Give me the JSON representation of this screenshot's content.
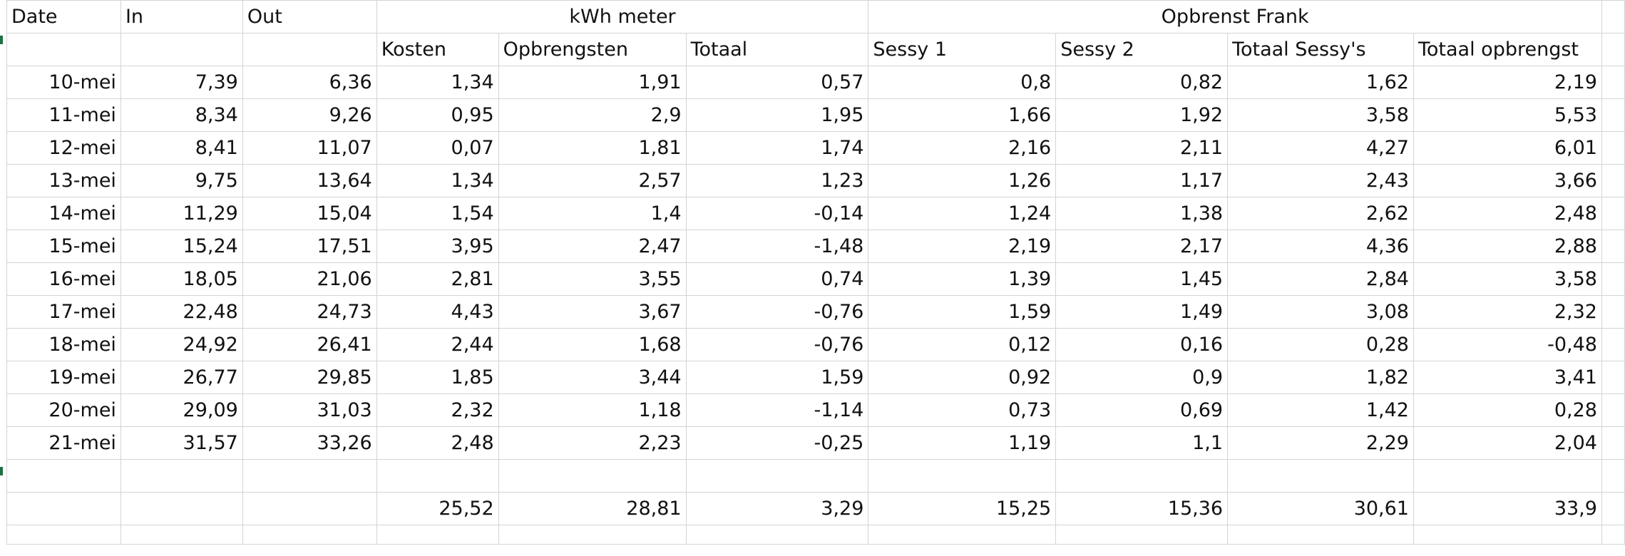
{
  "header": {
    "row1": {
      "date": "Date",
      "in": "In",
      "out": "Out",
      "kwh_meter": "kWh meter",
      "opbrenst_frank": "Opbrenst Frank"
    },
    "row2": [
      "Kosten",
      "Opbrengsten",
      "Totaal",
      "Sessy 1",
      "Sessy 2",
      "Totaal Sessy's",
      "Totaal opbrengst"
    ]
  },
  "rows": [
    [
      "10-mei",
      "7,39",
      "6,36",
      "1,34",
      "1,91",
      "0,57",
      "0,8",
      "0,82",
      "1,62",
      "2,19"
    ],
    [
      "11-mei",
      "8,34",
      "9,26",
      "0,95",
      "2,9",
      "1,95",
      "1,66",
      "1,92",
      "3,58",
      "5,53"
    ],
    [
      "12-mei",
      "8,41",
      "11,07",
      "0,07",
      "1,81",
      "1,74",
      "2,16",
      "2,11",
      "4,27",
      "6,01"
    ],
    [
      "13-mei",
      "9,75",
      "13,64",
      "1,34",
      "2,57",
      "1,23",
      "1,26",
      "1,17",
      "2,43",
      "3,66"
    ],
    [
      "14-mei",
      "11,29",
      "15,04",
      "1,54",
      "1,4",
      "-0,14",
      "1,24",
      "1,38",
      "2,62",
      "2,48"
    ],
    [
      "15-mei",
      "15,24",
      "17,51",
      "3,95",
      "2,47",
      "-1,48",
      "2,19",
      "2,17",
      "4,36",
      "2,88"
    ],
    [
      "16-mei",
      "18,05",
      "21,06",
      "2,81",
      "3,55",
      "0,74",
      "1,39",
      "1,45",
      "2,84",
      "3,58"
    ],
    [
      "17-mei",
      "22,48",
      "24,73",
      "4,43",
      "3,67",
      "-0,76",
      "1,59",
      "1,49",
      "3,08",
      "2,32"
    ],
    [
      "18-mei",
      "24,92",
      "26,41",
      "2,44",
      "1,68",
      "-0,76",
      "0,12",
      "0,16",
      "0,28",
      "-0,48"
    ],
    [
      "19-mei",
      "26,77",
      "29,85",
      "1,85",
      "3,44",
      "1,59",
      "0,92",
      "0,9",
      "1,82",
      "3,41"
    ],
    [
      "20-mei",
      "29,09",
      "31,03",
      "2,32",
      "1,18",
      "-1,14",
      "0,73",
      "0,69",
      "1,42",
      "0,28"
    ],
    [
      "21-mei",
      "31,57",
      "33,26",
      "2,48",
      "2,23",
      "-0,25",
      "1,19",
      "1,1",
      "2,29",
      "2,04"
    ]
  ],
  "totals": [
    "25,52",
    "28,81",
    "3,29",
    "15,25",
    "15,36",
    "30,61",
    "33,9"
  ]
}
